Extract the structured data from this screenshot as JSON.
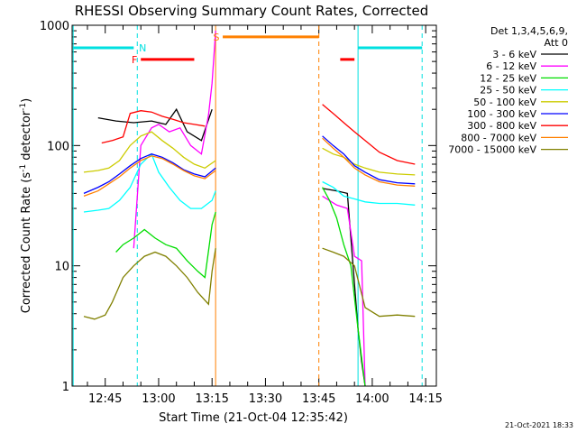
{
  "chart_data": {
    "type": "line",
    "title": "RHESSI Observing Summary Count Rates, Corrected",
    "xlabel": "Start Time (21-Oct-04 12:35:42)",
    "ylabel": "Corrected Count Rate (s",
    "ylabel_sup": "-1",
    "ylabel_tail": " detector",
    "ylabel_close": ")",
    "footer": "21-Oct-2021 18:33",
    "y_scale": "log",
    "ylim": [
      1,
      1000
    ],
    "xlim": [
      "12:35:42",
      "14:18:00"
    ],
    "y_ticks": [
      {
        "value": 1,
        "label": "1"
      },
      {
        "value": 10,
        "label": "10"
      },
      {
        "value": 100,
        "label": "100"
      },
      {
        "value": 1000,
        "label": "1000"
      }
    ],
    "x_ticks": [
      {
        "value": "12:45",
        "label": "12:45"
      },
      {
        "value": "13:00",
        "label": "13:00"
      },
      {
        "value": "13:15",
        "label": "13:15"
      },
      {
        "value": "13:30",
        "label": "13:30"
      },
      {
        "value": "13:45",
        "label": "13:45"
      },
      {
        "value": "14:00",
        "label": "14:00"
      },
      {
        "value": "14:15",
        "label": "14:15"
      }
    ],
    "legend": {
      "placement": "right",
      "header": [
        "Det 1,3,4,5,6,9,",
        "Att 0"
      ]
    },
    "series": [
      {
        "name": "3 - 6 keV",
        "color": "#000000",
        "values": [
          [
            "12:43",
            170
          ],
          [
            "12:48",
            160
          ],
          [
            "12:53",
            155
          ],
          [
            "12:58",
            160
          ],
          [
            "13:02",
            150
          ],
          [
            "13:05",
            200
          ],
          [
            "13:08",
            130
          ],
          [
            "13:12",
            110
          ],
          [
            "13:15",
            200
          ],
          [
            "13:46",
            44
          ],
          [
            "13:50",
            42
          ],
          [
            "13:53",
            40
          ],
          [
            "13:56",
            3
          ],
          [
            "13:57",
            1.6
          ],
          [
            "13:58",
            1
          ]
        ]
      },
      {
        "name": "6 - 12 keV",
        "color": "#ff00ff",
        "values": [
          [
            "12:53",
            14
          ],
          [
            "12:55",
            100
          ],
          [
            "12:58",
            140
          ],
          [
            "13:00",
            150
          ],
          [
            "13:03",
            130
          ],
          [
            "13:06",
            140
          ],
          [
            "13:09",
            100
          ],
          [
            "13:12",
            85
          ],
          [
            "13:14",
            180
          ],
          [
            "13:15",
            330
          ],
          [
            "13:16",
            900
          ],
          [
            "13:46",
            38
          ],
          [
            "13:50",
            32
          ],
          [
            "13:53",
            30
          ],
          [
            "13:55",
            12
          ],
          [
            "13:57",
            11
          ],
          [
            "13:58",
            1
          ]
        ]
      },
      {
        "name": "12 - 25 keV",
        "color": "#00dd00",
        "values": [
          [
            "12:48",
            13
          ],
          [
            "12:50",
            15
          ],
          [
            "12:53",
            17
          ],
          [
            "12:56",
            20
          ],
          [
            "12:59",
            17
          ],
          [
            "13:02",
            15
          ],
          [
            "13:05",
            14
          ],
          [
            "13:08",
            11
          ],
          [
            "13:11",
            9
          ],
          [
            "13:13",
            8
          ],
          [
            "13:15",
            22
          ],
          [
            "13:16",
            28
          ],
          [
            "13:46",
            45
          ],
          [
            "13:48",
            35
          ],
          [
            "13:50",
            25
          ],
          [
            "13:52",
            15
          ],
          [
            "13:54",
            10
          ],
          [
            "13:56",
            3
          ],
          [
            "13:58",
            1
          ]
        ]
      },
      {
        "name": "25 - 50 keV",
        "color": "#00ffff",
        "values": [
          [
            "12:39",
            28
          ],
          [
            "12:43",
            29
          ],
          [
            "12:46",
            30
          ],
          [
            "12:49",
            35
          ],
          [
            "12:52",
            45
          ],
          [
            "12:55",
            70
          ],
          [
            "12:58",
            85
          ],
          [
            "13:00",
            60
          ],
          [
            "13:03",
            45
          ],
          [
            "13:06",
            35
          ],
          [
            "13:09",
            30
          ],
          [
            "13:12",
            30
          ],
          [
            "13:15",
            35
          ],
          [
            "13:16",
            42
          ],
          [
            "13:46",
            50
          ],
          [
            "13:49",
            45
          ],
          [
            "13:52",
            38
          ],
          [
            "13:55",
            36
          ],
          [
            "13:58",
            34
          ],
          [
            "14:02",
            33
          ],
          [
            "14:07",
            33
          ],
          [
            "14:12",
            32
          ]
        ]
      },
      {
        "name": "50 - 100 keV",
        "color": "#cccc00",
        "values": [
          [
            "12:39",
            60
          ],
          [
            "12:43",
            62
          ],
          [
            "12:46",
            65
          ],
          [
            "12:49",
            75
          ],
          [
            "12:52",
            100
          ],
          [
            "12:55",
            120
          ],
          [
            "12:58",
            130
          ],
          [
            "13:01",
            110
          ],
          [
            "13:04",
            95
          ],
          [
            "13:07",
            80
          ],
          [
            "13:10",
            70
          ],
          [
            "13:13",
            65
          ],
          [
            "13:16",
            75
          ],
          [
            "13:46",
            95
          ],
          [
            "13:49",
            85
          ],
          [
            "13:52",
            80
          ],
          [
            "13:55",
            70
          ],
          [
            "13:58",
            65
          ],
          [
            "14:02",
            60
          ],
          [
            "14:07",
            58
          ],
          [
            "14:12",
            57
          ]
        ]
      },
      {
        "name": "100 - 300 keV",
        "color": "#0000ff",
        "values": [
          [
            "12:39",
            40
          ],
          [
            "12:43",
            45
          ],
          [
            "12:46",
            50
          ],
          [
            "12:49",
            58
          ],
          [
            "12:52",
            68
          ],
          [
            "12:55",
            78
          ],
          [
            "12:58",
            85
          ],
          [
            "13:01",
            80
          ],
          [
            "13:04",
            72
          ],
          [
            "13:07",
            63
          ],
          [
            "13:10",
            58
          ],
          [
            "13:13",
            55
          ],
          [
            "13:16",
            65
          ],
          [
            "13:46",
            120
          ],
          [
            "13:49",
            100
          ],
          [
            "13:52",
            85
          ],
          [
            "13:55",
            68
          ],
          [
            "13:58",
            60
          ],
          [
            "14:02",
            52
          ],
          [
            "14:07",
            49
          ],
          [
            "14:12",
            48
          ]
        ]
      },
      {
        "name": "300 - 800 keV",
        "color": "#ff0000",
        "values": [
          [
            "12:44",
            105
          ],
          [
            "12:47",
            110
          ],
          [
            "12:50",
            118
          ],
          [
            "12:52",
            185
          ],
          [
            "12:55",
            195
          ],
          [
            "12:58",
            190
          ],
          [
            "13:01",
            175
          ],
          [
            "13:04",
            165
          ],
          [
            "13:07",
            155
          ],
          [
            "13:10",
            150
          ],
          [
            "13:13",
            145
          ],
          [
            "13:46",
            220
          ],
          [
            "13:49",
            185
          ],
          [
            "13:52",
            155
          ],
          [
            "13:55",
            130
          ],
          [
            "13:58",
            110
          ],
          [
            "14:02",
            88
          ],
          [
            "14:07",
            75
          ],
          [
            "14:12",
            70
          ]
        ]
      },
      {
        "name": "800 - 7000 keV",
        "color": "#ff8000",
        "values": [
          [
            "12:39",
            38
          ],
          [
            "12:43",
            42
          ],
          [
            "12:46",
            48
          ],
          [
            "12:49",
            55
          ],
          [
            "12:52",
            65
          ],
          [
            "12:55",
            75
          ],
          [
            "12:58",
            82
          ],
          [
            "13:01",
            78
          ],
          [
            "13:04",
            70
          ],
          [
            "13:07",
            62
          ],
          [
            "13:10",
            56
          ],
          [
            "13:13",
            53
          ],
          [
            "13:16",
            62
          ],
          [
            "13:46",
            115
          ],
          [
            "13:49",
            95
          ],
          [
            "13:52",
            80
          ],
          [
            "13:55",
            65
          ],
          [
            "13:58",
            57
          ],
          [
            "14:02",
            50
          ],
          [
            "14:07",
            47
          ],
          [
            "14:12",
            46
          ]
        ]
      },
      {
        "name": "7000 - 15000 keV",
        "color": "#808000",
        "values": [
          [
            "12:39",
            3.8
          ],
          [
            "12:42",
            3.6
          ],
          [
            "12:45",
            3.9
          ],
          [
            "12:47",
            5
          ],
          [
            "12:50",
            8
          ],
          [
            "12:53",
            10
          ],
          [
            "12:56",
            12
          ],
          [
            "12:59",
            13
          ],
          [
            "13:02",
            12
          ],
          [
            "13:05",
            10
          ],
          [
            "13:08",
            8
          ],
          [
            "13:11",
            6
          ],
          [
            "13:14",
            4.8
          ],
          [
            "13:15",
            9
          ],
          [
            "13:16",
            14
          ],
          [
            "13:46",
            14
          ],
          [
            "13:49",
            13
          ],
          [
            "13:52",
            12
          ],
          [
            "13:55",
            10
          ],
          [
            "13:58",
            4.5
          ],
          [
            "14:02",
            3.8
          ],
          [
            "14:07",
            3.9
          ],
          [
            "14:12",
            3.8
          ]
        ]
      }
    ],
    "state_bars": [
      {
        "label": "",
        "color": "#00e0e0",
        "from": "12:36",
        "to": "12:53",
        "value": 650
      },
      {
        "label": "N",
        "color": "#00e0e0",
        "from": "12:54",
        "to": "12:54",
        "value": 650
      },
      {
        "label": "",
        "color": "#00e0e0",
        "from": "13:56",
        "to": "14:14",
        "value": 650
      },
      {
        "label": "F",
        "color": "#ff0000",
        "from": "12:55",
        "to": "13:10",
        "value": 520
      },
      {
        "label": "",
        "color": "#ff0000",
        "from": "13:51",
        "to": "13:55",
        "value": 520
      },
      {
        "label": "S",
        "color": "#ff8000",
        "from": "13:18",
        "to": "13:45",
        "value": 800
      }
    ],
    "vertical_markers": [
      {
        "time": "12:36:00",
        "color": "#00e0e0",
        "style": "solid"
      },
      {
        "time": "12:54:00",
        "color": "#00e0e0",
        "style": "dashed"
      },
      {
        "time": "13:16:00",
        "color": "#ff8000",
        "style": "solid"
      },
      {
        "time": "13:45:00",
        "color": "#ff8000",
        "style": "dashed"
      },
      {
        "time": "13:56:00",
        "color": "#00e0e0",
        "style": "solid"
      },
      {
        "time": "14:14:00",
        "color": "#00e0e0",
        "style": "dashed"
      }
    ]
  }
}
